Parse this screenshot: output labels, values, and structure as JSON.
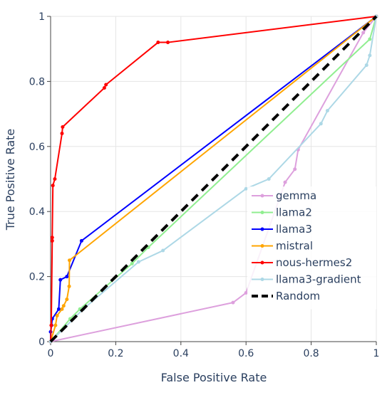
{
  "chart_data": {
    "type": "line",
    "title": "",
    "xlabel": "False Positive Rate",
    "ylabel": "True Positive Rate",
    "xlim": [
      0,
      1
    ],
    "ylim": [
      0,
      1
    ],
    "grid": true,
    "legend_position": "bottom-right",
    "x_ticks": [
      "0",
      "0.2",
      "0.4",
      "0.6",
      "0.8",
      "1"
    ],
    "y_ticks": [
      "0",
      "0.2",
      "0.4",
      "0.6",
      "0.8",
      "1"
    ],
    "x_tick_values": [
      0,
      0.2,
      0.4,
      0.6,
      0.8,
      1
    ],
    "y_tick_values": [
      0,
      0.2,
      0.4,
      0.6,
      0.8,
      1
    ],
    "series": [
      {
        "name": "gemma",
        "color": "#dda0dd",
        "dash": "solid",
        "markers": true,
        "points": [
          [
            0,
            0
          ],
          [
            0.56,
            0.12
          ],
          [
            0.6,
            0.15
          ],
          [
            0.72,
            0.49
          ],
          [
            0.75,
            0.53
          ],
          [
            0.76,
            0.59
          ],
          [
            0.96,
            0.95
          ],
          [
            1,
            1
          ]
        ]
      },
      {
        "name": "llama2",
        "color": "#90ee90",
        "dash": "solid",
        "markers": true,
        "points": [
          [
            0,
            0
          ],
          [
            0.06,
            0.07
          ],
          [
            0.09,
            0.1
          ],
          [
            0.25,
            0.24
          ],
          [
            0.3,
            0.29
          ],
          [
            0.98,
            0.93
          ],
          [
            1,
            1
          ]
        ]
      },
      {
        "name": "llama3",
        "color": "#0000ff",
        "dash": "solid",
        "markers": true,
        "points": [
          [
            0,
            0
          ],
          [
            0,
            0.03
          ],
          [
            0.003,
            0.05
          ],
          [
            0.005,
            0.07
          ],
          [
            0.025,
            0.1
          ],
          [
            0.03,
            0.19
          ],
          [
            0.05,
            0.2
          ],
          [
            0.095,
            0.31
          ],
          [
            1,
            1
          ]
        ]
      },
      {
        "name": "mistral",
        "color": "#ffa500",
        "dash": "solid",
        "markers": true,
        "points": [
          [
            0,
            0
          ],
          [
            0.015,
            0.05
          ],
          [
            0.02,
            0.08
          ],
          [
            0.035,
            0.1
          ],
          [
            0.04,
            0.11
          ],
          [
            0.05,
            0.13
          ],
          [
            0.057,
            0.17
          ],
          [
            0.058,
            0.25
          ],
          [
            1,
            1
          ]
        ]
      },
      {
        "name": "nous-hermes2",
        "color": "#ff0000",
        "dash": "solid",
        "markers": true,
        "points": [
          [
            0,
            0
          ],
          [
            0.002,
            0.05
          ],
          [
            0.005,
            0.31
          ],
          [
            0.005,
            0.32
          ],
          [
            0.007,
            0.48
          ],
          [
            0.013,
            0.5
          ],
          [
            0.035,
            0.64
          ],
          [
            0.037,
            0.66
          ],
          [
            0.165,
            0.78
          ],
          [
            0.17,
            0.79
          ],
          [
            0.33,
            0.92
          ],
          [
            0.36,
            0.92
          ],
          [
            1,
            1
          ]
        ]
      },
      {
        "name": "llama3-gradient",
        "color": "#add8e6",
        "dash": "solid",
        "markers": true,
        "points": [
          [
            0,
            0
          ],
          [
            0.1,
            0.1
          ],
          [
            0.27,
            0.245
          ],
          [
            0.345,
            0.28
          ],
          [
            0.6,
            0.47
          ],
          [
            0.67,
            0.5
          ],
          [
            0.83,
            0.67
          ],
          [
            0.85,
            0.71
          ],
          [
            0.97,
            0.85
          ],
          [
            0.98,
            0.88
          ],
          [
            1,
            1
          ]
        ]
      },
      {
        "name": "Random",
        "color": "#000000",
        "dash": "dash",
        "markers": false,
        "points": [
          [
            0,
            0
          ],
          [
            1,
            1
          ]
        ]
      }
    ]
  }
}
